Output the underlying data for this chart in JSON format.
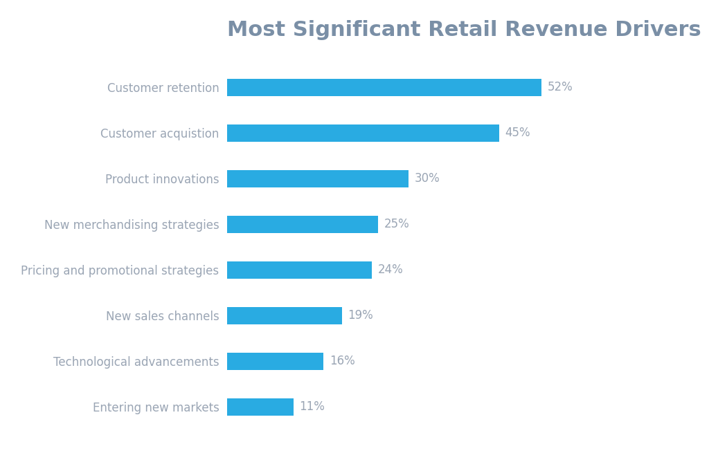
{
  "title": "Most Significant Retail Revenue Drivers",
  "categories": [
    "Customer retention",
    "Customer acquistion",
    "Product innovations",
    "New merchandising strategies",
    "Pricing and promotional strategies",
    "New sales channels",
    "Technological advancements",
    "Entering new markets"
  ],
  "values": [
    52,
    45,
    30,
    25,
    24,
    19,
    16,
    11
  ],
  "bar_color": "#29ABE2",
  "label_color": "#9aa5b4",
  "title_color": "#7a8fa6",
  "background_color": "#ffffff",
  "title_fontsize": 22,
  "label_fontsize": 12,
  "value_fontsize": 12,
  "bar_height": 0.38,
  "xlim": [
    0,
    68
  ]
}
